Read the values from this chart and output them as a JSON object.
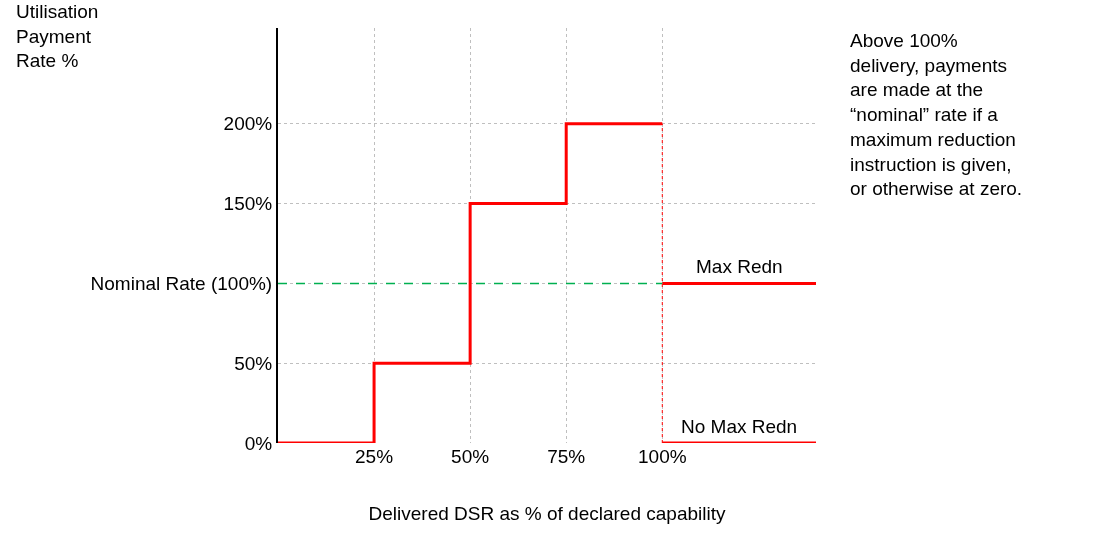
{
  "chart_data": {
    "type": "step",
    "xlabel": "Delivered DSR as % of declared capability",
    "ylabel": "Utilisation\nPayment\nRate %",
    "x": [
      0,
      25,
      50,
      75,
      100
    ],
    "series": [
      {
        "color": "#ff0000",
        "values": [
          0,
          50,
          150,
          200,
          200
        ]
      },
      {
        "name": "Max Redn",
        "type": "line",
        "color": "#ff0000",
        "x": [
          100,
          140
        ],
        "values": [
          100,
          100
        ]
      },
      {
        "name": "No Max Redn",
        "type": "line",
        "color": "#ff0000",
        "x": [
          100,
          140
        ],
        "values": [
          0,
          0
        ]
      },
      {
        "type": "line",
        "color": "#00b050",
        "x": [
          0,
          100
        ],
        "values": [
          100,
          100
        ],
        "line_style": "dashed"
      }
    ],
    "ref_lines": [
      {
        "axis": "x",
        "value": 100,
        "color": "#ff0000",
        "line_style": "dotted"
      }
    ],
    "xlim": [
      0,
      140
    ],
    "ylim": [
      0,
      260
    ],
    "xticks": [
      {
        "value": 25,
        "label": "25%"
      },
      {
        "value": 50,
        "label": "50%"
      },
      {
        "value": 75,
        "label": "75%"
      },
      {
        "value": 100,
        "label": "100%"
      }
    ],
    "yticks": [
      {
        "value": 0,
        "label": "0%"
      },
      {
        "value": 50,
        "label": "50%"
      },
      {
        "value": 100,
        "label": "Nominal Rate (100%)"
      },
      {
        "value": 150,
        "label": "150%"
      },
      {
        "value": 200,
        "label": "200%"
      }
    ],
    "grid": true,
    "line_style": "solid",
    "annotations": [
      "Above 100%\ndelivery, payments\nare made at the\n“nominal” rate if a\nmaximum reduction\ninstruction is given,\nor otherwise at zero."
    ]
  }
}
